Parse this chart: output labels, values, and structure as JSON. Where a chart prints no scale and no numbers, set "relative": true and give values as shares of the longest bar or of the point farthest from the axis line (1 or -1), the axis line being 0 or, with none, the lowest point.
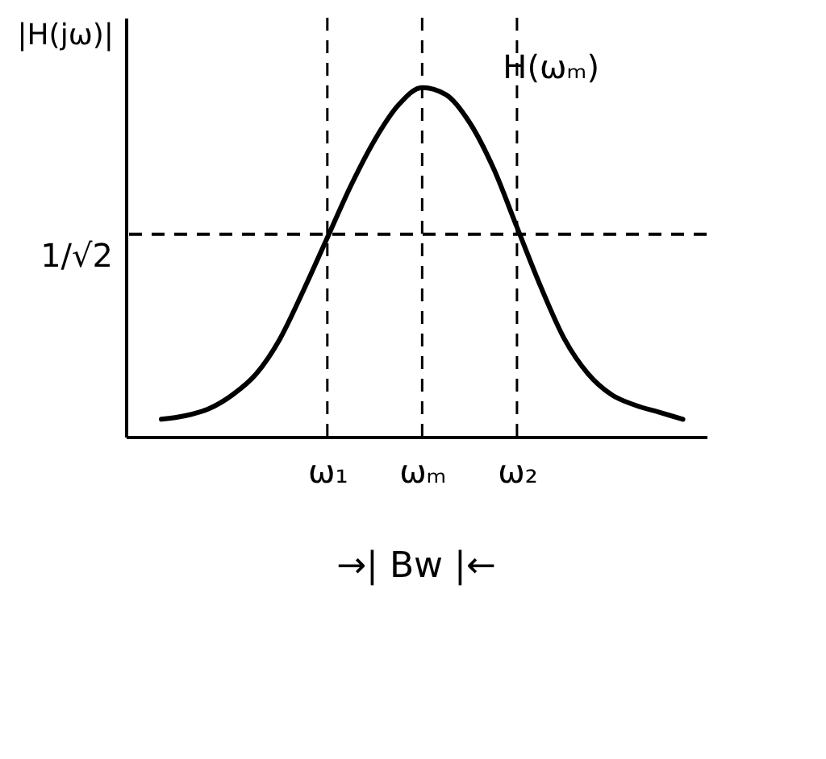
{
  "chart_data": {
    "type": "line",
    "relative": true,
    "ylabel": "|H(jω)|",
    "categories": [
      null,
      null,
      null,
      null,
      null,
      null,
      null,
      "ω₁",
      null,
      null,
      null,
      "ωₘ",
      null,
      null,
      null,
      "ω₂",
      null,
      null,
      null,
      null,
      null,
      null,
      null
    ],
    "series": [
      {
        "color": "#000000",
        "values": [
          0.05,
          0.06,
          0.08,
          0.12,
          0.18,
          0.28,
          0.42,
          0.57,
          0.72,
          0.85,
          0.95,
          1.0,
          0.98,
          0.9,
          0.77,
          0.6,
          0.43,
          0.28,
          0.18,
          0.12,
          0.09,
          0.07,
          0.05
        ]
      }
    ],
    "ref_lines": [
      {
        "axis": "y",
        "value": 0.58,
        "label": "1/√2",
        "line_style": "dashed"
      },
      {
        "axis": "x",
        "value": "ω₁",
        "line_style": "dashed"
      },
      {
        "axis": "x",
        "value": "ωₘ",
        "line_style": "dashed"
      },
      {
        "axis": "x",
        "value": "ω₂",
        "line_style": "dashed"
      }
    ],
    "annotations": [
      {
        "text": "H(ωₘ)",
        "x": "ωₘ",
        "y": 1.0
      },
      "→| Bw |←"
    ],
    "grid": false,
    "marker": "none",
    "line_style": "solid"
  }
}
